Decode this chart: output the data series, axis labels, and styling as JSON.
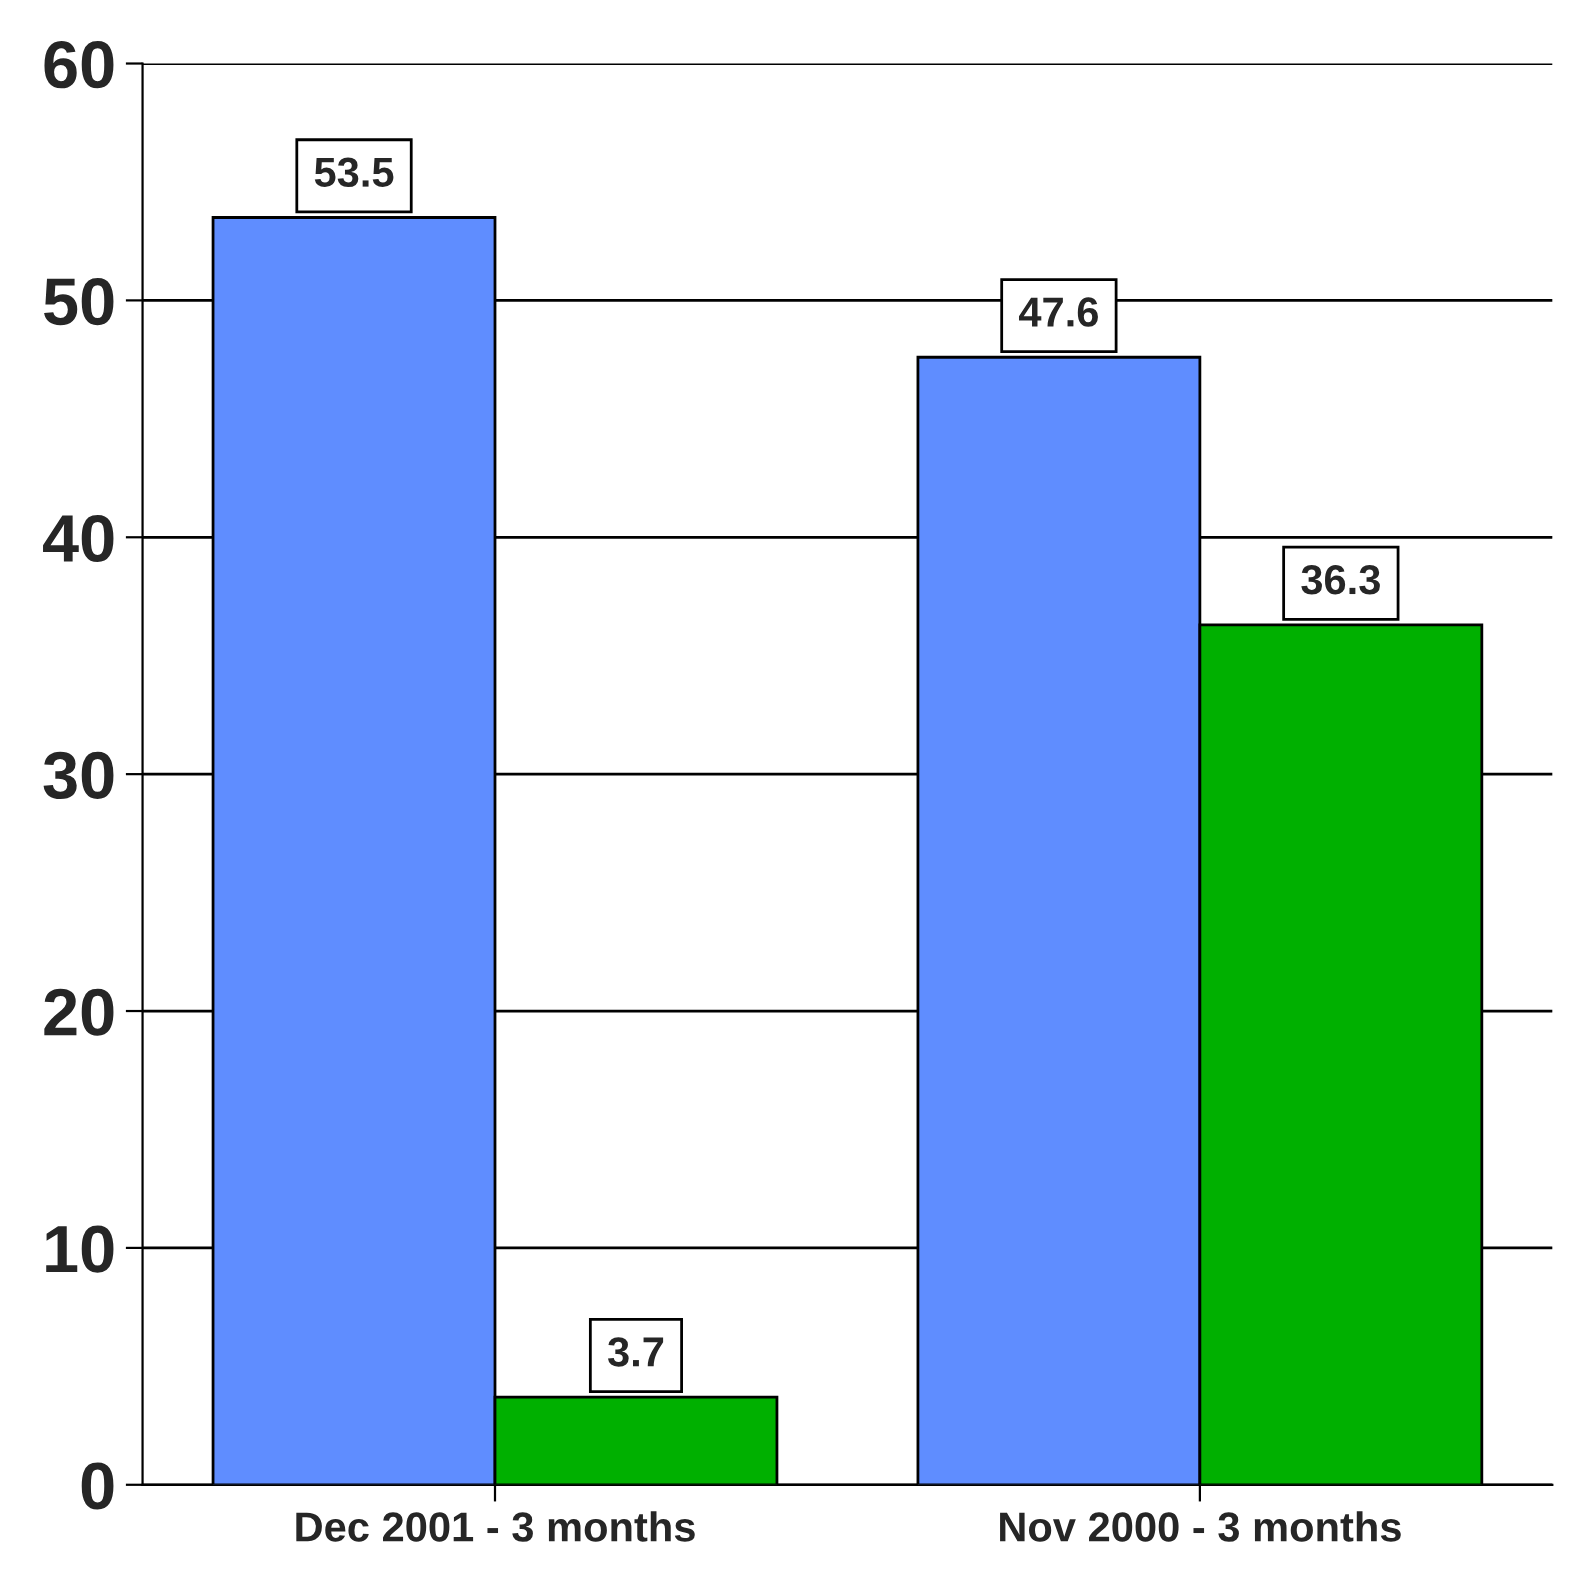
{
  "chart_data": {
    "type": "bar",
    "categories": [
      "Dec 2001 - 3 months",
      "Nov 2000 - 3 months"
    ],
    "series": [
      {
        "color": "#5f8dff",
        "values": [
          53.5,
          47.6
        ]
      },
      {
        "color": "#00b000",
        "values": [
          3.7,
          36.3
        ]
      }
    ],
    "ylim": [
      0,
      60
    ],
    "yticks": [
      0,
      10,
      20,
      30,
      40,
      50,
      60
    ],
    "grid": "y",
    "data_labels": true
  }
}
